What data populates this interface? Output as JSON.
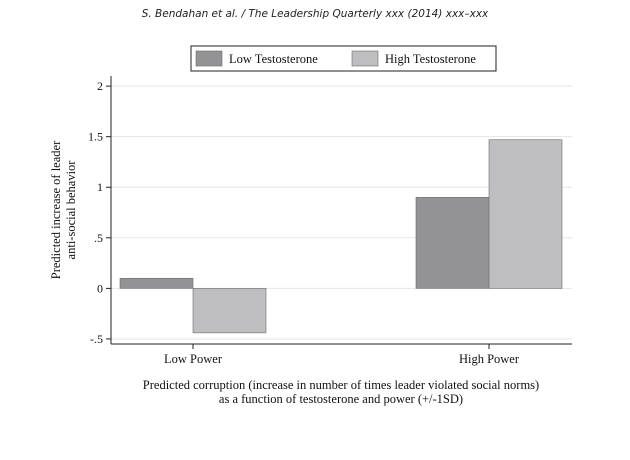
{
  "header": {
    "running_head": "S. Bendahan et al. / The Leadership Quarterly xxx (2014) xxx–xxx"
  },
  "chart_data": {
    "type": "bar",
    "categories": [
      "Low Power",
      "High Power"
    ],
    "series": [
      {
        "name": "Low Testosterone",
        "values": [
          0.1,
          0.9
        ],
        "color": "#939395"
      },
      {
        "name": "High Testosterone",
        "values": [
          -0.44,
          1.47
        ],
        "color": "#bebec0"
      }
    ],
    "ylim": [
      -0.55,
      2.1
    ],
    "yticks": [
      {
        "value": -0.5,
        "label": "-.5"
      },
      {
        "value": 0,
        "label": "0"
      },
      {
        "value": 0.5,
        "label": ".5"
      },
      {
        "value": 1,
        "label": "1"
      },
      {
        "value": 1.5,
        "label": "1.5"
      },
      {
        "value": 2,
        "label": "2"
      }
    ],
    "ylabel_lines": [
      "Predicted increase of leader",
      "anti-social behavior"
    ],
    "xlabel_lines": [
      "Predicted corruption (increase in number of times leader violated social norms)",
      "as a function of testosterone and power (+/-1SD)"
    ],
    "grid": true,
    "legend_position": "top"
  }
}
